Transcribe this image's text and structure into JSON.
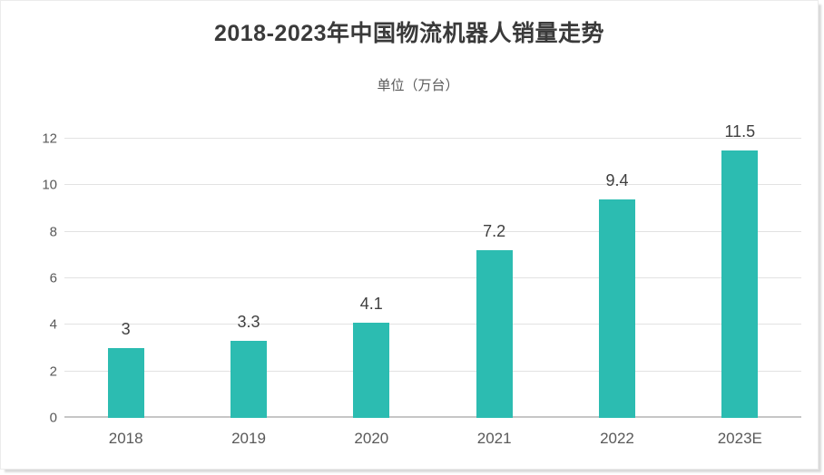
{
  "page": {
    "background": "#ffffff",
    "card_border_color": "#ececec",
    "card_shadow_color": "#d9d9d9"
  },
  "colors": {
    "bar": "#2CBCB1",
    "title_text": "#3a3a3a",
    "axis_text": "#595959",
    "value_label_text": "#3f3f3f",
    "gridline": "#e2e2e2",
    "axis_line": "#c6c6c6"
  },
  "chart_data": {
    "type": "bar",
    "title": "2018-2023年中国物流机器人销量走势",
    "legend": [
      "单位（万台）"
    ],
    "legend_position": "top-center",
    "categories": [
      "2018",
      "2019",
      "2020",
      "2021",
      "2022",
      "2023E"
    ],
    "values": [
      3,
      3.3,
      4.1,
      7.2,
      9.4,
      11.5
    ],
    "value_labels": [
      "3",
      "3.3",
      "4.1",
      "7.2",
      "9.4",
      "11.5"
    ],
    "xlabel": "",
    "ylabel": "",
    "ylim": [
      0,
      12
    ],
    "yticks": [
      0,
      2,
      4,
      6,
      8,
      10,
      12
    ],
    "grid": true,
    "bar_color": "#2CBCB1"
  }
}
